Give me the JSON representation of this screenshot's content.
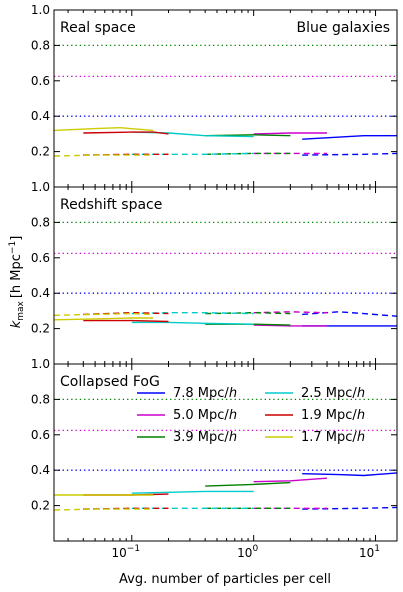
{
  "chart_data": {
    "type": "line",
    "xlabel": "Avg. number of particles per cell",
    "ylabel": "k",
    "ylabel_sub": "max",
    "ylabel_unit": "[h Mpc",
    "ylabel_exp": "−1",
    "ylabel_close": "]",
    "xscale": "log",
    "xlim": [
      0.023,
      15
    ],
    "ylim": [
      0.0,
      1.0
    ],
    "x_ticks": [
      {
        "value": 0.1,
        "label": "10",
        "exp": "−1"
      },
      {
        "value": 1,
        "label": "10",
        "exp": "0"
      },
      {
        "value": 10,
        "label": "10",
        "exp": "1"
      }
    ],
    "y_ticks": [
      "0.2",
      "0.4",
      "0.6",
      "0.8",
      "1.0"
    ],
    "y_tick_values": [
      0.2,
      0.4,
      0.6,
      0.8,
      1.0
    ],
    "reference_lines": [
      {
        "y": 0.8,
        "color": "#008000"
      },
      {
        "y": 0.625,
        "color": "#cc00cc"
      },
      {
        "y": 0.4,
        "color": "#0000ff"
      }
    ],
    "series_colors": [
      "#0000ff",
      "#cc00cc",
      "#008000",
      "#00cccc",
      "#cc0000",
      "#cccc00"
    ],
    "legend": [
      {
        "value": "7.8",
        "unit": "Mpc/",
        "h": "h",
        "color": "#0000ff"
      },
      {
        "value": "2.5",
        "unit": "Mpc/",
        "h": "h",
        "color": "#00cccc"
      },
      {
        "value": "5.0",
        "unit": "Mpc/",
        "h": "h",
        "color": "#cc00cc"
      },
      {
        "value": "1.9",
        "unit": "Mpc/",
        "h": "h",
        "color": "#cc0000"
      },
      {
        "value": "3.9",
        "unit": "Mpc/",
        "h": "h",
        "color": "#008000"
      },
      {
        "value": "1.7",
        "unit": "Mpc/",
        "h": "h",
        "color": "#cccc00"
      }
    ],
    "panels": [
      {
        "label_left": "Real space",
        "label_right": "Blue galaxies",
        "solid": [
          {
            "series": 0,
            "points": [
              [
                2.5,
                0.27
              ],
              [
                8,
                0.29
              ],
              [
                15,
                0.29
              ]
            ]
          },
          {
            "series": 1,
            "points": [
              [
                1,
                0.3
              ],
              [
                2,
                0.305
              ],
              [
                4,
                0.305
              ]
            ]
          },
          {
            "series": 2,
            "points": [
              [
                0.4,
                0.29
              ],
              [
                1,
                0.295
              ],
              [
                2,
                0.29
              ]
            ]
          },
          {
            "series": 3,
            "points": [
              [
                0.1,
                0.31
              ],
              [
                0.2,
                0.305
              ],
              [
                0.4,
                0.29
              ],
              [
                1,
                0.285
              ]
            ]
          },
          {
            "series": 4,
            "points": [
              [
                0.04,
                0.305
              ],
              [
                0.1,
                0.31
              ],
              [
                0.15,
                0.31
              ],
              [
                0.2,
                0.3
              ]
            ]
          },
          {
            "series": 5,
            "points": [
              [
                0.023,
                0.32
              ],
              [
                0.05,
                0.33
              ],
              [
                0.08,
                0.335
              ],
              [
                0.15,
                0.32
              ]
            ]
          }
        ],
        "dashed": [
          {
            "series": 0,
            "points": [
              [
                2.5,
                0.18
              ],
              [
                8,
                0.185
              ],
              [
                15,
                0.19
              ]
            ]
          },
          {
            "series": 1,
            "points": [
              [
                1,
                0.19
              ],
              [
                2,
                0.19
              ],
              [
                4,
                0.19
              ]
            ]
          },
          {
            "series": 2,
            "points": [
              [
                0.4,
                0.185
              ],
              [
                1,
                0.19
              ],
              [
                2,
                0.19
              ]
            ]
          },
          {
            "series": 3,
            "points": [
              [
                0.1,
                0.185
              ],
              [
                0.2,
                0.185
              ],
              [
                0.4,
                0.185
              ],
              [
                1,
                0.19
              ]
            ]
          },
          {
            "series": 4,
            "points": [
              [
                0.04,
                0.18
              ],
              [
                0.1,
                0.185
              ],
              [
                0.2,
                0.185
              ]
            ]
          },
          {
            "series": 5,
            "points": [
              [
                0.023,
                0.175
              ],
              [
                0.05,
                0.18
              ],
              [
                0.1,
                0.18
              ],
              [
                0.15,
                0.18
              ]
            ]
          }
        ]
      },
      {
        "label_left": "Redshift space",
        "label_right": "",
        "solid": [
          {
            "series": 0,
            "points": [
              [
                2.5,
                0.215
              ],
              [
                8,
                0.215
              ],
              [
                15,
                0.215
              ]
            ]
          },
          {
            "series": 1,
            "points": [
              [
                1,
                0.22
              ],
              [
                2,
                0.215
              ],
              [
                4,
                0.215
              ]
            ]
          },
          {
            "series": 2,
            "points": [
              [
                0.4,
                0.225
              ],
              [
                1,
                0.225
              ],
              [
                2,
                0.22
              ]
            ]
          },
          {
            "series": 3,
            "points": [
              [
                0.1,
                0.235
              ],
              [
                0.2,
                0.235
              ],
              [
                0.4,
                0.23
              ],
              [
                1,
                0.225
              ]
            ]
          },
          {
            "series": 4,
            "points": [
              [
                0.04,
                0.245
              ],
              [
                0.1,
                0.245
              ],
              [
                0.2,
                0.24
              ]
            ]
          },
          {
            "series": 5,
            "points": [
              [
                0.023,
                0.25
              ],
              [
                0.05,
                0.255
              ],
              [
                0.1,
                0.26
              ],
              [
                0.15,
                0.26
              ]
            ]
          }
        ],
        "dashed": [
          {
            "series": 0,
            "points": [
              [
                2.5,
                0.28
              ],
              [
                5,
                0.295
              ],
              [
                8,
                0.285
              ],
              [
                15,
                0.27
              ]
            ]
          },
          {
            "series": 1,
            "points": [
              [
                1,
                0.29
              ],
              [
                2,
                0.295
              ],
              [
                4,
                0.29
              ]
            ]
          },
          {
            "series": 2,
            "points": [
              [
                0.4,
                0.285
              ],
              [
                1,
                0.29
              ],
              [
                2,
                0.285
              ]
            ]
          },
          {
            "series": 3,
            "points": [
              [
                0.1,
                0.285
              ],
              [
                0.2,
                0.29
              ],
              [
                0.4,
                0.29
              ],
              [
                1,
                0.285
              ]
            ]
          },
          {
            "series": 4,
            "points": [
              [
                0.04,
                0.28
              ],
              [
                0.1,
                0.29
              ],
              [
                0.2,
                0.285
              ]
            ]
          },
          {
            "series": 5,
            "points": [
              [
                0.023,
                0.275
              ],
              [
                0.05,
                0.28
              ],
              [
                0.1,
                0.285
              ],
              [
                0.15,
                0.28
              ]
            ]
          }
        ]
      },
      {
        "label_left": "Collapsed FoG",
        "label_right": "",
        "solid": [
          {
            "series": 0,
            "points": [
              [
                2.5,
                0.38
              ],
              [
                5,
                0.375
              ],
              [
                8,
                0.37
              ],
              [
                15,
                0.385
              ]
            ]
          },
          {
            "series": 1,
            "points": [
              [
                1,
                0.335
              ],
              [
                2,
                0.34
              ],
              [
                4,
                0.355
              ]
            ]
          },
          {
            "series": 2,
            "points": [
              [
                0.4,
                0.31
              ],
              [
                1,
                0.32
              ],
              [
                2,
                0.33
              ]
            ]
          },
          {
            "series": 3,
            "points": [
              [
                0.1,
                0.27
              ],
              [
                0.2,
                0.275
              ],
              [
                0.4,
                0.28
              ],
              [
                1,
                0.28
              ]
            ]
          },
          {
            "series": 4,
            "points": [
              [
                0.04,
                0.26
              ],
              [
                0.1,
                0.26
              ],
              [
                0.2,
                0.265
              ]
            ]
          },
          {
            "series": 5,
            "points": [
              [
                0.023,
                0.26
              ],
              [
                0.05,
                0.26
              ],
              [
                0.1,
                0.26
              ],
              [
                0.15,
                0.26
              ]
            ]
          }
        ],
        "dashed": [
          {
            "series": 0,
            "points": [
              [
                2.5,
                0.18
              ],
              [
                8,
                0.185
              ],
              [
                15,
                0.19
              ]
            ]
          },
          {
            "series": 1,
            "points": [
              [
                1,
                0.185
              ],
              [
                2,
                0.185
              ],
              [
                4,
                0.185
              ]
            ]
          },
          {
            "series": 2,
            "points": [
              [
                0.4,
                0.185
              ],
              [
                1,
                0.185
              ],
              [
                2,
                0.185
              ]
            ]
          },
          {
            "series": 3,
            "points": [
              [
                0.1,
                0.185
              ],
              [
                0.2,
                0.185
              ],
              [
                0.4,
                0.185
              ],
              [
                1,
                0.185
              ]
            ]
          },
          {
            "series": 4,
            "points": [
              [
                0.04,
                0.18
              ],
              [
                0.1,
                0.185
              ],
              [
                0.2,
                0.185
              ]
            ]
          },
          {
            "series": 5,
            "points": [
              [
                0.023,
                0.175
              ],
              [
                0.05,
                0.18
              ],
              [
                0.1,
                0.18
              ],
              [
                0.15,
                0.18
              ]
            ]
          }
        ]
      }
    ]
  }
}
